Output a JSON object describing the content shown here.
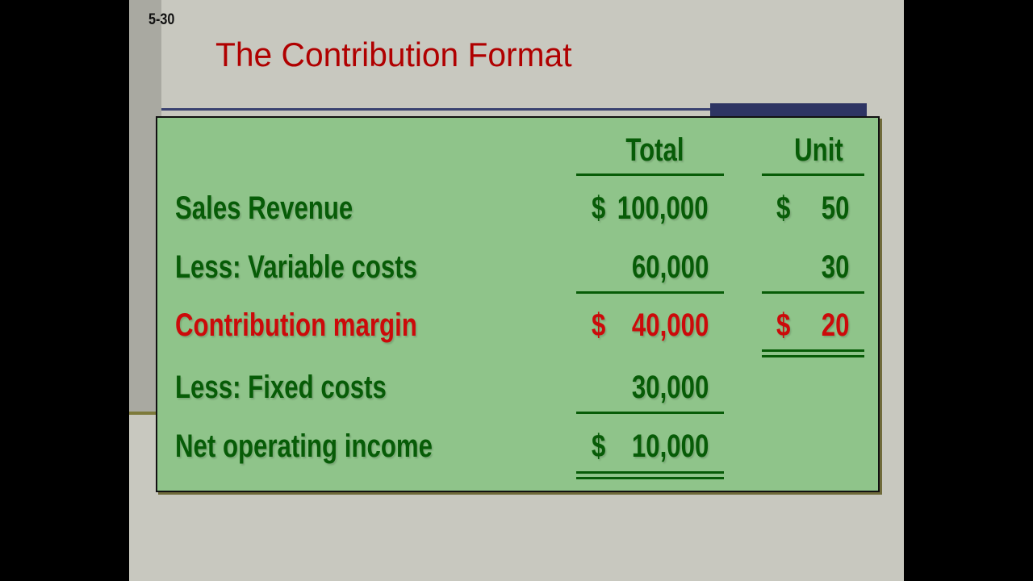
{
  "slide_number": "5-30",
  "title": "The Contribution Format",
  "table": {
    "headers": {
      "total": "Total",
      "unit": "Unit"
    },
    "rows": [
      {
        "label": "Sales Revenue",
        "total_sign": "$",
        "total": "100,000",
        "unit_sign": "$",
        "unit": "50"
      },
      {
        "label": "Less:  Variable costs",
        "total_sign": "",
        "total": "60,000",
        "unit_sign": "",
        "unit": "30"
      },
      {
        "label": "Contribution margin",
        "total_sign": "$",
        "total": "40,000",
        "unit_sign": "$",
        "unit": "20"
      },
      {
        "label": "Less:  Fixed costs",
        "total_sign": "",
        "total": "30,000"
      },
      {
        "label": "Net operating income",
        "total_sign": "$",
        "total": "10,000"
      }
    ]
  },
  "colors": {
    "title": "#b00000",
    "text": "#075c07",
    "highlight": "#cc0a0a",
    "panel": "#8fc48a"
  }
}
